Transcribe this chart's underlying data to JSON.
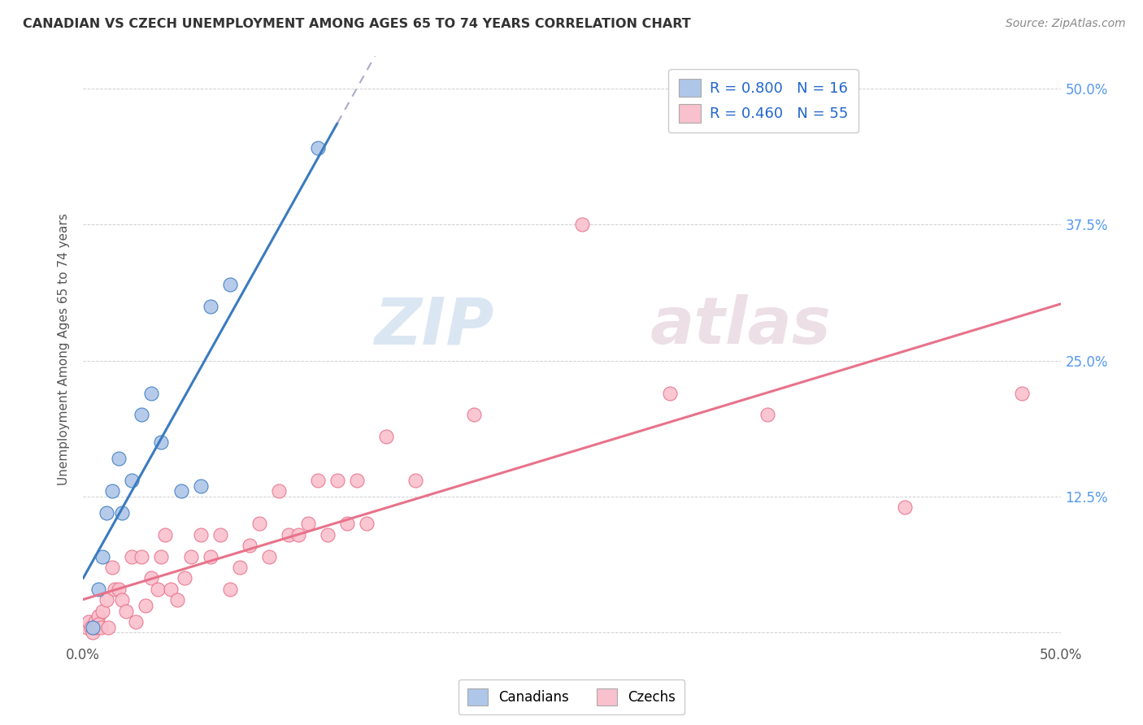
{
  "title": "CANADIAN VS CZECH UNEMPLOYMENT AMONG AGES 65 TO 74 YEARS CORRELATION CHART",
  "source": "Source: ZipAtlas.com",
  "ylabel": "Unemployment Among Ages 65 to 74 years",
  "xlim": [
    0.0,
    0.5
  ],
  "ylim": [
    0.0,
    0.52
  ],
  "canada_R": 0.8,
  "canada_N": 16,
  "czech_R": 0.46,
  "czech_N": 55,
  "canada_color": "#aec6e8",
  "czech_color": "#f9c0cd",
  "canada_line_color": "#3a7bbf",
  "czech_line_color": "#e8728a",
  "legend_color": "#2266cc",
  "canada_x": [
    0.005,
    0.008,
    0.01,
    0.012,
    0.015,
    0.018,
    0.02,
    0.025,
    0.03,
    0.035,
    0.04,
    0.05,
    0.06,
    0.065,
    0.075,
    0.12
  ],
  "canada_y": [
    0.005,
    0.04,
    0.07,
    0.11,
    0.13,
    0.16,
    0.11,
    0.14,
    0.2,
    0.22,
    0.175,
    0.13,
    0.135,
    0.3,
    0.32,
    0.445
  ],
  "czech_x": [
    0.002,
    0.003,
    0.004,
    0.005,
    0.006,
    0.007,
    0.008,
    0.008,
    0.009,
    0.01,
    0.012,
    0.013,
    0.015,
    0.016,
    0.018,
    0.02,
    0.022,
    0.025,
    0.027,
    0.03,
    0.032,
    0.035,
    0.038,
    0.04,
    0.042,
    0.045,
    0.048,
    0.052,
    0.055,
    0.06,
    0.065,
    0.07,
    0.075,
    0.08,
    0.085,
    0.09,
    0.095,
    0.1,
    0.105,
    0.11,
    0.115,
    0.12,
    0.125,
    0.13,
    0.135,
    0.14,
    0.145,
    0.155,
    0.17,
    0.2,
    0.255,
    0.3,
    0.35,
    0.42,
    0.48
  ],
  "czech_y": [
    0.005,
    0.01,
    0.005,
    0.0,
    0.01,
    0.005,
    0.015,
    0.008,
    0.005,
    0.02,
    0.03,
    0.005,
    0.06,
    0.04,
    0.04,
    0.03,
    0.02,
    0.07,
    0.01,
    0.07,
    0.025,
    0.05,
    0.04,
    0.07,
    0.09,
    0.04,
    0.03,
    0.05,
    0.07,
    0.09,
    0.07,
    0.09,
    0.04,
    0.06,
    0.08,
    0.1,
    0.07,
    0.13,
    0.09,
    0.09,
    0.1,
    0.14,
    0.09,
    0.14,
    0.1,
    0.14,
    0.1,
    0.18,
    0.14,
    0.2,
    0.375,
    0.22,
    0.2,
    0.115,
    0.22
  ],
  "watermark_zip": "ZIP",
  "watermark_atlas": "atlas",
  "background_color": "#ffffff",
  "grid_color": "#d0d0d0"
}
